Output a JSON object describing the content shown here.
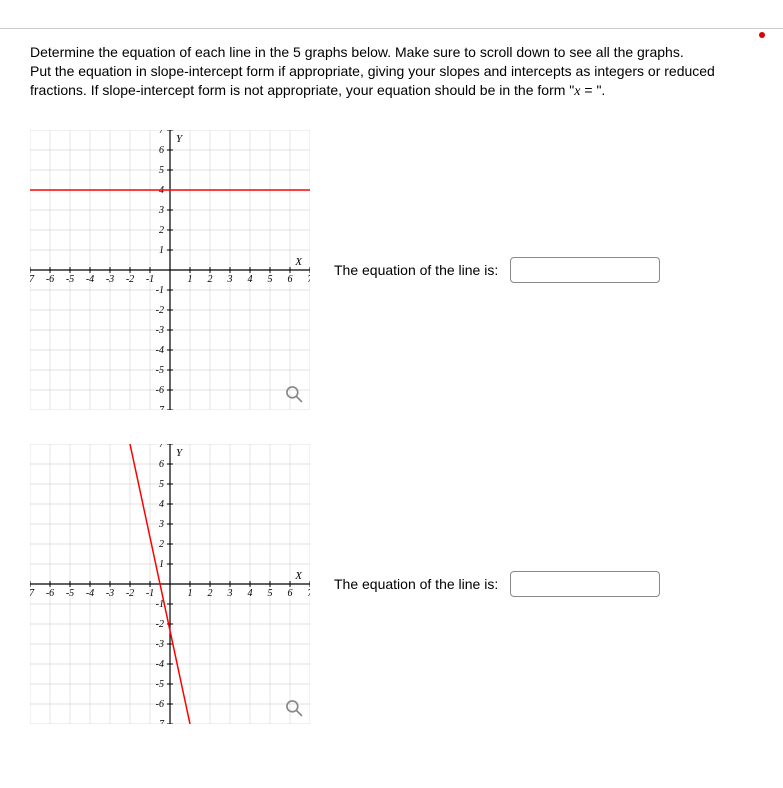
{
  "instructions": {
    "line1": "Determine the equation of each line in the 5 graphs below. Make sure to scroll down to see all the graphs.",
    "line2_pre": "Put the equation in slope-intercept form if appropriate, giving your slopes and intercepts as integers or reduced fractions. If slope-intercept form is not appropriate, your equation should be in the form \"",
    "line2_var": "x",
    "line2_post": " = \"."
  },
  "answer_label": "The equation of the line is:",
  "graph_common": {
    "xmin": -7,
    "xmax": 7,
    "ymin": -7,
    "ymax": 7,
    "tick_step": 1,
    "grid_color": "#d9d9d9",
    "axis_color": "#000000",
    "x_axis_label": "X",
    "y_axis_label": "Y",
    "bg": "#ffffff",
    "tick_font_size": 10
  },
  "graphs": [
    {
      "id": "g1",
      "type": "line",
      "line_color": "#ff0000",
      "line_width": 1.5,
      "points": [
        [
          -7,
          4
        ],
        [
          7,
          4
        ]
      ],
      "equation_hint": "y = 4",
      "input_value": ""
    },
    {
      "id": "g2",
      "type": "line",
      "line_color": "#ff0000",
      "line_width": 1.5,
      "points": [
        [
          -2,
          7
        ],
        [
          1,
          -7
        ]
      ],
      "equation_hint": "",
      "input_value": ""
    }
  ]
}
